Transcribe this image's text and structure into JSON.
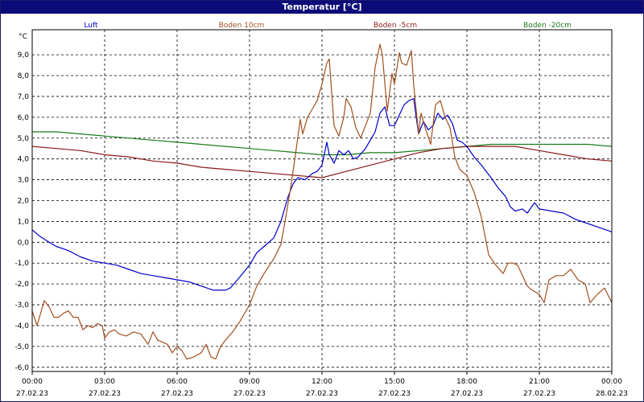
{
  "window": {
    "title": "Temperatur [°C]"
  },
  "chart_data": {
    "type": "line",
    "title": "Temperatur [°C]",
    "ylabel": "°C",
    "ylim": [
      -6.2,
      10.2
    ],
    "xlim_hours": [
      0,
      24
    ],
    "y_ticks": [
      {
        "value": 9.0,
        "label": "9,0"
      },
      {
        "value": 8.0,
        "label": "8,0"
      },
      {
        "value": 7.0,
        "label": "7,0"
      },
      {
        "value": 6.0,
        "label": "6,0"
      },
      {
        "value": 5.0,
        "label": "5,0"
      },
      {
        "value": 4.0,
        "label": "4,0"
      },
      {
        "value": 3.0,
        "label": "3,0"
      },
      {
        "value": 2.0,
        "label": "2,0"
      },
      {
        "value": 1.0,
        "label": "1,0"
      },
      {
        "value": 0.0,
        "label": "0,0"
      },
      {
        "value": -1.0,
        "label": "-1,0"
      },
      {
        "value": -2.0,
        "label": "-2,0"
      },
      {
        "value": -3.0,
        "label": "-3,0"
      },
      {
        "value": -4.0,
        "label": "-4,0"
      },
      {
        "value": -5.0,
        "label": "-5,0"
      },
      {
        "value": -6.0,
        "label": "-6,0"
      }
    ],
    "x_ticks": [
      {
        "hour": 0,
        "time": "00:00",
        "date": "27.02.23"
      },
      {
        "hour": 3,
        "time": "03:00",
        "date": "27.02.23"
      },
      {
        "hour": 6,
        "time": "06:00",
        "date": "27.02.23"
      },
      {
        "hour": 9,
        "time": "09:00",
        "date": "27.02.23"
      },
      {
        "hour": 12,
        "time": "12:00",
        "date": "27.02.23"
      },
      {
        "hour": 15,
        "time": "15:00",
        "date": "27.02.23"
      },
      {
        "hour": 18,
        "time": "18:00",
        "date": "27.02.23"
      },
      {
        "hour": 21,
        "time": "21:00",
        "date": "27.02.23"
      },
      {
        "hour": 24,
        "time": "00:00",
        "date": "28.02.23"
      }
    ],
    "grid": true,
    "legend_placement": "top",
    "series": [
      {
        "name": "Luft",
        "color": "#0000cc",
        "points": [
          [
            0,
            0.6
          ],
          [
            0.3,
            0.3
          ],
          [
            0.7,
            0
          ],
          [
            1,
            -0.2
          ],
          [
            1.5,
            -0.4
          ],
          [
            2,
            -0.7
          ],
          [
            2.5,
            -0.9
          ],
          [
            3,
            -1.0
          ],
          [
            3.5,
            -1.1
          ],
          [
            4,
            -1.3
          ],
          [
            4.5,
            -1.5
          ],
          [
            5,
            -1.6
          ],
          [
            5.5,
            -1.7
          ],
          [
            6,
            -1.8
          ],
          [
            6.5,
            -1.9
          ],
          [
            7,
            -2.1
          ],
          [
            7.5,
            -2.3
          ],
          [
            8,
            -2.3
          ],
          [
            8.2,
            -2.2
          ],
          [
            8.5,
            -1.8
          ],
          [
            9,
            -1.1
          ],
          [
            9.3,
            -0.5
          ],
          [
            9.6,
            -0.2
          ],
          [
            10,
            0.2
          ],
          [
            10.3,
            1.0
          ],
          [
            10.6,
            2.2
          ],
          [
            10.8,
            2.8
          ],
          [
            11,
            3.1
          ],
          [
            11.3,
            3.0
          ],
          [
            11.6,
            3.3
          ],
          [
            11.8,
            3.4
          ],
          [
            12,
            3.7
          ],
          [
            12.2,
            4.8
          ],
          [
            12.3,
            4.2
          ],
          [
            12.5,
            3.8
          ],
          [
            12.7,
            4.4
          ],
          [
            12.9,
            4.2
          ],
          [
            13.1,
            4.4
          ],
          [
            13.3,
            4.0
          ],
          [
            13.5,
            4.1
          ],
          [
            13.8,
            4.5
          ],
          [
            14,
            4.9
          ],
          [
            14.2,
            5.3
          ],
          [
            14.4,
            6.2
          ],
          [
            14.6,
            6.5
          ],
          [
            14.8,
            5.6
          ],
          [
            15,
            5.6
          ],
          [
            15.2,
            6.1
          ],
          [
            15.4,
            6.6
          ],
          [
            15.6,
            6.8
          ],
          [
            15.8,
            6.9
          ],
          [
            15.9,
            6.0
          ],
          [
            16,
            5.2
          ],
          [
            16.2,
            5.8
          ],
          [
            16.4,
            5.4
          ],
          [
            16.6,
            5.6
          ],
          [
            16.8,
            6.2
          ],
          [
            17,
            5.9
          ],
          [
            17.2,
            6.1
          ],
          [
            17.4,
            5.7
          ],
          [
            17.6,
            4.9
          ],
          [
            17.8,
            4.8
          ],
          [
            18,
            4.6
          ],
          [
            18.3,
            4.1
          ],
          [
            18.6,
            3.7
          ],
          [
            19,
            3.1
          ],
          [
            19.3,
            2.6
          ],
          [
            19.6,
            2.2
          ],
          [
            19.8,
            1.7
          ],
          [
            20,
            1.5
          ],
          [
            20.3,
            1.6
          ],
          [
            20.5,
            1.4
          ],
          [
            20.8,
            1.9
          ],
          [
            21,
            1.6
          ],
          [
            21.5,
            1.5
          ],
          [
            22,
            1.4
          ],
          [
            22.5,
            1.1
          ],
          [
            23,
            0.9
          ],
          [
            23.5,
            0.7
          ],
          [
            24,
            0.5
          ]
        ]
      },
      {
        "name": "Boden 10cm",
        "color": "#a0501e",
        "points": [
          [
            0,
            -3.3
          ],
          [
            0.2,
            -4.0
          ],
          [
            0.5,
            -2.8
          ],
          [
            0.7,
            -3.1
          ],
          [
            0.9,
            -3.6
          ],
          [
            1.1,
            -3.6
          ],
          [
            1.3,
            -3.4
          ],
          [
            1.5,
            -3.3
          ],
          [
            1.7,
            -3.6
          ],
          [
            1.9,
            -3.6
          ],
          [
            2.1,
            -4.2
          ],
          [
            2.3,
            -4.0
          ],
          [
            2.5,
            -4.1
          ],
          [
            2.7,
            -3.9
          ],
          [
            2.9,
            -4.0
          ],
          [
            3,
            -4.6
          ],
          [
            3.2,
            -4.3
          ],
          [
            3.4,
            -4.2
          ],
          [
            3.6,
            -4.4
          ],
          [
            3.9,
            -4.5
          ],
          [
            4.2,
            -4.3
          ],
          [
            4.5,
            -4.4
          ],
          [
            4.8,
            -4.9
          ],
          [
            5,
            -4.3
          ],
          [
            5.2,
            -4.7
          ],
          [
            5.4,
            -4.8
          ],
          [
            5.6,
            -4.9
          ],
          [
            5.8,
            -5.3
          ],
          [
            6,
            -5.0
          ],
          [
            6.2,
            -5.2
          ],
          [
            6.4,
            -5.6
          ],
          [
            6.7,
            -5.5
          ],
          [
            7,
            -5.3
          ],
          [
            7.2,
            -4.9
          ],
          [
            7.4,
            -5.5
          ],
          [
            7.6,
            -5.6
          ],
          [
            7.8,
            -5.0
          ],
          [
            8,
            -4.7
          ],
          [
            8.3,
            -4.3
          ],
          [
            8.6,
            -3.8
          ],
          [
            9,
            -3.0
          ],
          [
            9.3,
            -2.1
          ],
          [
            9.6,
            -1.5
          ],
          [
            10,
            -0.8
          ],
          [
            10.3,
            -0.1
          ],
          [
            10.5,
            1.2
          ],
          [
            10.7,
            2.6
          ],
          [
            10.9,
            4.2
          ],
          [
            11.1,
            5.9
          ],
          [
            11.2,
            5.2
          ],
          [
            11.4,
            6.0
          ],
          [
            11.6,
            6.4
          ],
          [
            11.8,
            6.8
          ],
          [
            12,
            7.6
          ],
          [
            12.2,
            8.6
          ],
          [
            12.3,
            8.8
          ],
          [
            12.5,
            5.6
          ],
          [
            12.7,
            5.1
          ],
          [
            12.9,
            6.0
          ],
          [
            13,
            6.9
          ],
          [
            13.2,
            6.5
          ],
          [
            13.4,
            5.5
          ],
          [
            13.6,
            5.0
          ],
          [
            13.8,
            5.6
          ],
          [
            14,
            6.2
          ],
          [
            14.2,
            8.4
          ],
          [
            14.4,
            9.5
          ],
          [
            14.5,
            9.0
          ],
          [
            14.7,
            6.3
          ],
          [
            14.9,
            8.1
          ],
          [
            15,
            7.6
          ],
          [
            15.2,
            9.1
          ],
          [
            15.3,
            8.6
          ],
          [
            15.5,
            8.5
          ],
          [
            15.7,
            9.2
          ],
          [
            15.8,
            7.5
          ],
          [
            16,
            5.2
          ],
          [
            16.1,
            6.2
          ],
          [
            16.3,
            5.4
          ],
          [
            16.5,
            4.7
          ],
          [
            16.7,
            6.6
          ],
          [
            16.9,
            6.8
          ],
          [
            17.1,
            6.0
          ],
          [
            17.3,
            5.5
          ],
          [
            17.5,
            4.1
          ],
          [
            17.7,
            3.5
          ],
          [
            18,
            3.2
          ],
          [
            18.3,
            2.4
          ],
          [
            18.6,
            1.2
          ],
          [
            18.9,
            -0.6
          ],
          [
            19.2,
            -1.1
          ],
          [
            19.5,
            -1.5
          ],
          [
            19.7,
            -1.0
          ],
          [
            19.9,
            -1.0
          ],
          [
            20.1,
            -1.1
          ],
          [
            20.3,
            -1.6
          ],
          [
            20.5,
            -2.1
          ],
          [
            20.7,
            -2.3
          ],
          [
            21,
            -2.5
          ],
          [
            21.2,
            -2.9
          ],
          [
            21.4,
            -1.8
          ],
          [
            21.7,
            -1.6
          ],
          [
            22,
            -1.6
          ],
          [
            22.3,
            -1.3
          ],
          [
            22.6,
            -1.8
          ],
          [
            22.9,
            -2.0
          ],
          [
            23.1,
            -2.9
          ],
          [
            23.4,
            -2.5
          ],
          [
            23.7,
            -2.2
          ],
          [
            24,
            -2.9
          ]
        ]
      },
      {
        "name": "Boden -5cm",
        "color": "#8b1a1a",
        "points": [
          [
            0,
            4.6
          ],
          [
            1,
            4.5
          ],
          [
            2,
            4.4
          ],
          [
            3,
            4.2
          ],
          [
            4,
            4.1
          ],
          [
            5,
            3.9
          ],
          [
            6,
            3.8
          ],
          [
            7,
            3.6
          ],
          [
            8,
            3.5
          ],
          [
            9,
            3.4
          ],
          [
            10,
            3.3
          ],
          [
            11,
            3.2
          ],
          [
            12,
            3.1
          ],
          [
            13,
            3.4
          ],
          [
            14,
            3.7
          ],
          [
            15,
            4.0
          ],
          [
            16,
            4.3
          ],
          [
            17,
            4.5
          ],
          [
            18,
            4.6
          ],
          [
            19,
            4.6
          ],
          [
            20,
            4.6
          ],
          [
            21,
            4.4
          ],
          [
            22,
            4.2
          ],
          [
            23,
            4.0
          ],
          [
            24,
            3.9
          ]
        ]
      },
      {
        "name": "Boden -20cm",
        "color": "#1a7a1a",
        "points": [
          [
            0,
            5.3
          ],
          [
            1,
            5.3
          ],
          [
            2,
            5.2
          ],
          [
            3,
            5.1
          ],
          [
            4,
            5.0
          ],
          [
            5,
            4.9
          ],
          [
            6,
            4.8
          ],
          [
            7,
            4.7
          ],
          [
            8,
            4.6
          ],
          [
            9,
            4.5
          ],
          [
            10,
            4.4
          ],
          [
            11,
            4.3
          ],
          [
            12,
            4.2
          ],
          [
            13,
            4.2
          ],
          [
            14,
            4.3
          ],
          [
            15,
            4.3
          ],
          [
            16,
            4.4
          ],
          [
            17,
            4.5
          ],
          [
            18,
            4.6
          ],
          [
            19,
            4.7
          ],
          [
            20,
            4.7
          ],
          [
            21,
            4.7
          ],
          [
            22,
            4.7
          ],
          [
            23,
            4.7
          ],
          [
            24,
            4.6
          ]
        ]
      }
    ]
  }
}
